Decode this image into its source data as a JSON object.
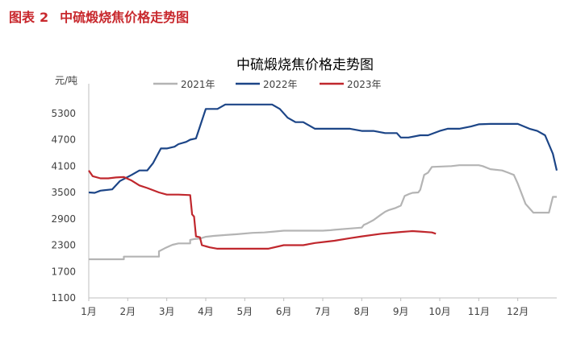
{
  "figure": {
    "label": "图表",
    "number": "2",
    "caption": "中硫煅烧焦价格走势图"
  },
  "chart_data": {
    "type": "line",
    "title": "中硫煅烧焦价格走势图",
    "ylabel": "元/吨",
    "xlabel": "",
    "ylim": [
      1100,
      5900
    ],
    "yticks": [
      1100,
      1700,
      2300,
      2900,
      3500,
      4100,
      4700,
      5300
    ],
    "x_unit": "month (1 = start of 1月)",
    "xlim": [
      1,
      13
    ],
    "xticks": [
      "1月",
      "2月",
      "3月",
      "4月",
      "5月",
      "6月",
      "7月",
      "8月",
      "9月",
      "10月",
      "11月",
      "12月"
    ],
    "grid": false,
    "legend_position": "top",
    "series": [
      {
        "name": "2021年",
        "color": "#b4b4b4",
        "x": [
          1.0,
          1.9,
          1.9,
          2.6,
          2.65,
          2.8,
          2.8,
          2.95,
          3.1,
          3.15,
          3.3,
          3.6,
          3.6,
          3.7,
          3.85,
          4.0,
          4.2,
          4.5,
          4.8,
          5.2,
          5.5,
          5.75,
          6.0,
          7.0,
          7.2,
          7.3,
          7.7,
          8.0,
          8.05,
          8.15,
          8.3,
          8.5,
          8.6,
          8.7,
          8.85,
          9.0,
          9.1,
          9.2,
          9.3,
          9.45,
          9.5,
          9.6,
          9.7,
          9.8,
          10.3,
          10.5,
          11.0,
          11.1,
          11.3,
          11.6,
          11.75,
          11.9,
          12.0,
          12.2,
          12.4,
          12.8,
          12.9,
          13.0
        ],
        "values": [
          1980,
          1980,
          2040,
          2040,
          2040,
          2040,
          2160,
          2230,
          2290,
          2310,
          2340,
          2340,
          2420,
          2440,
          2450,
          2490,
          2510,
          2530,
          2550,
          2580,
          2590,
          2610,
          2630,
          2630,
          2640,
          2650,
          2680,
          2700,
          2760,
          2800,
          2870,
          3000,
          3060,
          3100,
          3140,
          3200,
          3420,
          3460,
          3490,
          3500,
          3560,
          3900,
          3950,
          4080,
          4100,
          4120,
          4120,
          4100,
          4030,
          4000,
          3950,
          3900,
          3700,
          3240,
          3040,
          3040,
          3400,
          3400
        ]
      },
      {
        "name": "2022年",
        "color": "#1c4587",
        "x": [
          1.0,
          1.15,
          1.3,
          1.6,
          1.8,
          2.1,
          2.3,
          2.5,
          2.65,
          2.85,
          3.0,
          3.2,
          3.3,
          3.5,
          3.6,
          3.75,
          3.85,
          4.0,
          4.3,
          4.5,
          4.7,
          5.0,
          5.5,
          5.7,
          5.9,
          6.0,
          6.1,
          6.3,
          6.5,
          6.8,
          7.0,
          7.3,
          7.7,
          8.0,
          8.3,
          8.6,
          8.9,
          9.0,
          9.2,
          9.5,
          9.7,
          10.0,
          10.2,
          10.5,
          10.8,
          11.0,
          11.3,
          11.5,
          11.8,
          12.0,
          12.3,
          12.5,
          12.7,
          12.9,
          13.0
        ],
        "values": [
          3500,
          3490,
          3540,
          3570,
          3760,
          3900,
          4000,
          4000,
          4170,
          4500,
          4500,
          4540,
          4600,
          4650,
          4700,
          4730,
          5000,
          5400,
          5400,
          5500,
          5500,
          5500,
          5500,
          5500,
          5400,
          5300,
          5200,
          5100,
          5100,
          4950,
          4950,
          4950,
          4950,
          4900,
          4900,
          4850,
          4850,
          4750,
          4750,
          4800,
          4800,
          4900,
          4950,
          4950,
          5000,
          5050,
          5060,
          5060,
          5060,
          5060,
          4950,
          4900,
          4800,
          4380,
          4000
        ]
      },
      {
        "name": "2023年",
        "color": "#c0272d",
        "x": [
          1.0,
          1.1,
          1.3,
          1.5,
          1.7,
          1.9,
          2.1,
          2.3,
          2.5,
          2.8,
          3.0,
          3.3,
          3.6,
          3.65,
          3.7,
          3.75,
          3.85,
          3.9,
          4.1,
          4.3,
          5.0,
          5.6,
          6.0,
          6.5,
          6.8,
          7.1,
          7.3,
          7.7,
          8.0,
          8.5,
          9.0,
          9.3,
          9.5,
          9.8,
          9.9
        ],
        "values": [
          4000,
          3870,
          3820,
          3820,
          3840,
          3850,
          3770,
          3660,
          3600,
          3500,
          3450,
          3450,
          3440,
          3000,
          2950,
          2500,
          2480,
          2300,
          2250,
          2220,
          2220,
          2220,
          2300,
          2300,
          2350,
          2380,
          2400,
          2460,
          2500,
          2560,
          2600,
          2620,
          2610,
          2590,
          2560
        ]
      }
    ]
  }
}
